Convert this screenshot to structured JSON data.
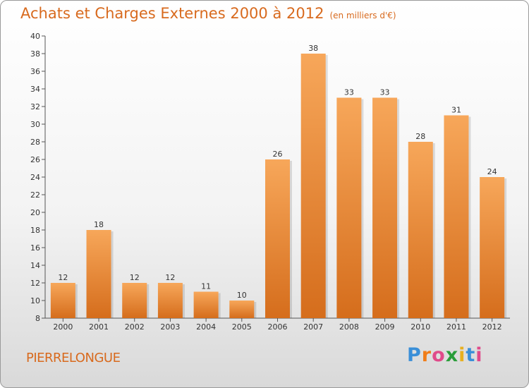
{
  "header": {
    "title": "Achats et Charges Externes 2000 à 2012",
    "subtitle": "(en milliers d'€)"
  },
  "footer": {
    "commune": "PIERRELONGUE",
    "logo": [
      "P",
      "r",
      "o",
      "x",
      "i",
      "t",
      "i"
    ],
    "logo_colors": [
      "#3a8fd8",
      "#f07d19",
      "#e04a8a",
      "#2a9d3a",
      "#e8b020",
      "#3a8fd8",
      "#e04a8a"
    ]
  },
  "chart_data": {
    "type": "bar",
    "title": "Achats et Charges Externes 2000 à 2012",
    "subtitle": "(en milliers d'€)",
    "xlabel": "",
    "ylabel": "",
    "categories": [
      "2000",
      "2001",
      "2002",
      "2003",
      "2004",
      "2005",
      "2006",
      "2007",
      "2008",
      "2009",
      "2010",
      "2011",
      "2012"
    ],
    "values": [
      12,
      18,
      12,
      12,
      11,
      10,
      26,
      38,
      33,
      33,
      28,
      31,
      24
    ],
    "ylim": [
      8,
      40
    ],
    "yticks": [
      8,
      10,
      12,
      14,
      16,
      18,
      20,
      22,
      24,
      26,
      28,
      30,
      32,
      34,
      36,
      38,
      40
    ],
    "grid": false,
    "bar_color_top": "#f7a75a",
    "bar_color_bottom": "#d56d1c"
  }
}
